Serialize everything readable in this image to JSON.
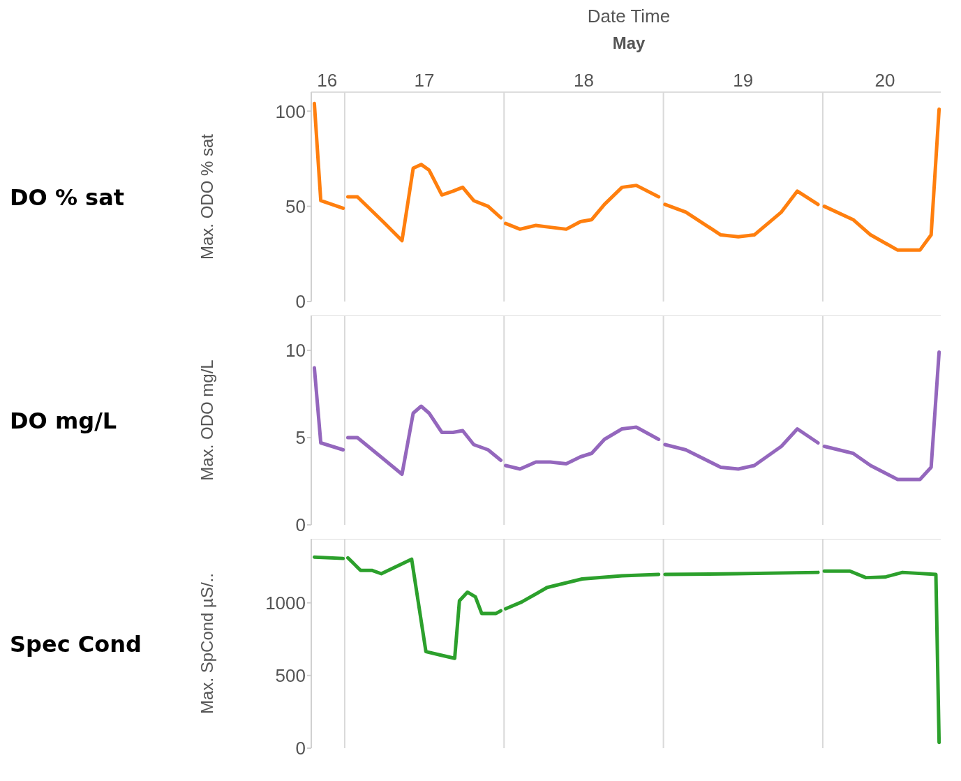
{
  "chart_data": [
    {
      "type": "line",
      "xlabel": "Date Time",
      "annotations": [
        "DO % sat",
        "May"
      ],
      "ylabel": "Max. ODO % sat",
      "xlim": [
        "--05-16T18:58",
        "--05-20T17:46"
      ],
      "xticks": [
        {
          "value": "--05-16T21:22",
          "label": "16"
        },
        {
          "value": "--05-17T12:00",
          "label": "17"
        },
        {
          "value": "--05-18T12:00",
          "label": "18"
        },
        {
          "value": "--05-19T12:00",
          "label": "19"
        },
        {
          "value": "--05-20T09:22",
          "label": "20"
        }
      ],
      "ylim": [
        0,
        110
      ],
      "yticks": [
        0,
        50,
        100
      ],
      "ref_lines": [
        {
          "axis": "x",
          "value": "--05-17T00:00",
          "color": "#d9d9d9"
        },
        {
          "axis": "x",
          "value": "--05-18T00:00",
          "color": "#d9d9d9"
        },
        {
          "axis": "x",
          "value": "--05-19T00:00",
          "color": "#d9d9d9"
        },
        {
          "axis": "x",
          "value": "--05-20T00:00",
          "color": "#d9d9d9"
        }
      ],
      "marker": "none",
      "x": [
        "--05-16T19:26",
        "--05-16T20:24",
        "--05-16T23:46",
        "--05-17T00:00",
        "--05-17T00:29",
        "--05-17T01:55",
        "--05-17T05:46",
        "--05-17T08:38",
        "--05-17T10:19",
        "--05-17T11:31",
        "--05-17T12:43",
        "--05-17T14:38",
        "--05-17T16:19",
        "--05-17T17:46",
        "--05-17T19:26",
        "--05-17T21:36",
        "--05-17T23:31",
        "--05-18T00:00",
        "--05-18T00:14",
        "--05-18T02:24",
        "--05-18T04:48",
        "--05-18T06:58",
        "--05-18T09:22",
        "--05-18T11:31",
        "--05-18T13:12",
        "--05-18T15:07",
        "--05-18T17:46",
        "--05-18T19:55",
        "--05-18T23:17",
        "--05-19T00:00",
        "--05-19T00:14",
        "--05-19T03:22",
        "--05-19T08:38",
        "--05-19T11:17",
        "--05-19T13:41",
        "--05-19T17:46",
        "--05-19T20:10",
        "--05-19T23:17",
        "--05-20T00:00",
        "--05-20T00:14",
        "--05-20T04:34",
        "--05-20T07:12",
        "--05-20T11:17",
        "--05-20T14:38",
        "--05-20T16:19",
        "--05-20T17:31"
      ],
      "series": [
        {
          "color": "#ff7f0e",
          "values": [
            104,
            53,
            49,
            null,
            55,
            55,
            42,
            32,
            70,
            72,
            69,
            56,
            58,
            60,
            53,
            50,
            44,
            null,
            41,
            38,
            40,
            39,
            38,
            42,
            43,
            51,
            60,
            61,
            55,
            null,
            51,
            47,
            35,
            34,
            35,
            47,
            58,
            51,
            null,
            50,
            43,
            35,
            27,
            27,
            35,
            101
          ]
        }
      ]
    },
    {
      "type": "line",
      "annotations": [
        "DO mg/L"
      ],
      "ylabel": "Max. ODO mg/L",
      "tick_labels": "y",
      "xlim": [
        "--05-16T18:58",
        "--05-20T17:46"
      ],
      "ylim": [
        0,
        12
      ],
      "yticks": [
        0,
        5,
        10
      ],
      "ref_lines": [
        {
          "axis": "x",
          "value": "--05-17T00:00",
          "color": "#d9d9d9"
        },
        {
          "axis": "x",
          "value": "--05-18T00:00",
          "color": "#d9d9d9"
        },
        {
          "axis": "x",
          "value": "--05-19T00:00",
          "color": "#d9d9d9"
        },
        {
          "axis": "x",
          "value": "--05-20T00:00",
          "color": "#d9d9d9"
        }
      ],
      "marker": "none",
      "x": [
        "--05-16T19:26",
        "--05-16T20:24",
        "--05-16T23:46",
        "--05-17T00:00",
        "--05-17T00:29",
        "--05-17T01:55",
        "--05-17T05:46",
        "--05-17T08:38",
        "--05-17T10:19",
        "--05-17T11:31",
        "--05-17T12:43",
        "--05-17T14:38",
        "--05-17T16:19",
        "--05-17T17:46",
        "--05-17T19:26",
        "--05-17T21:36",
        "--05-17T23:31",
        "--05-18T00:00",
        "--05-18T00:14",
        "--05-18T02:24",
        "--05-18T04:48",
        "--05-18T06:58",
        "--05-18T09:22",
        "--05-18T11:31",
        "--05-18T13:12",
        "--05-18T15:07",
        "--05-18T17:46",
        "--05-18T19:55",
        "--05-18T23:17",
        "--05-19T00:00",
        "--05-19T00:14",
        "--05-19T03:22",
        "--05-19T08:38",
        "--05-19T11:17",
        "--05-19T13:41",
        "--05-19T17:46",
        "--05-19T20:10",
        "--05-19T23:17",
        "--05-20T00:00",
        "--05-20T00:14",
        "--05-20T04:34",
        "--05-20T07:12",
        "--05-20T11:17",
        "--05-20T14:38",
        "--05-20T16:19",
        "--05-20T17:31"
      ],
      "series": [
        {
          "color": "#9467bd",
          "values": [
            9.0,
            4.7,
            4.3,
            null,
            5.0,
            5.0,
            3.8,
            2.9,
            6.4,
            6.8,
            6.4,
            5.3,
            5.3,
            5.4,
            4.6,
            4.3,
            3.7,
            null,
            3.4,
            3.2,
            3.6,
            3.6,
            3.5,
            3.9,
            4.1,
            4.9,
            5.5,
            5.6,
            4.9,
            null,
            4.6,
            4.3,
            3.3,
            3.2,
            3.4,
            4.5,
            5.5,
            4.7,
            null,
            4.5,
            4.1,
            3.4,
            2.6,
            2.6,
            3.3,
            9.9
          ]
        }
      ]
    },
    {
      "type": "line",
      "annotations": [
        "Spec Cond"
      ],
      "ylabel": "Max. SpCond µS/..",
      "tick_labels": "y",
      "xlim": [
        "--05-16T18:58",
        "--05-20T17:46"
      ],
      "ylim": [
        0,
        1440
      ],
      "yticks": [
        0,
        500,
        1000
      ],
      "ref_lines": [
        {
          "axis": "x",
          "value": "--05-17T00:00",
          "color": "#d9d9d9"
        },
        {
          "axis": "x",
          "value": "--05-18T00:00",
          "color": "#d9d9d9"
        },
        {
          "axis": "x",
          "value": "--05-19T00:00",
          "color": "#d9d9d9"
        },
        {
          "axis": "x",
          "value": "--05-20T00:00",
          "color": "#d9d9d9"
        }
      ],
      "marker": "none",
      "x": [
        "--05-16T19:26",
        "--05-16T23:46",
        "--05-17T00:00",
        "--05-17T00:29",
        "--05-17T02:24",
        "--05-17T04:05",
        "--05-17T05:31",
        "--05-17T10:05",
        "--05-17T12:14",
        "--05-17T14:24",
        "--05-17T16:34",
        "--05-17T17:17",
        "--05-17T18:29",
        "--05-17T19:41",
        "--05-17T20:38",
        "--05-17T22:48",
        "--05-17T23:31",
        "--05-18T00:00",
        "--05-18T00:14",
        "--05-18T02:38",
        "--05-18T06:29",
        "--05-18T11:46",
        "--05-18T17:46",
        "--05-18T23:17",
        "--05-19T00:00",
        "--05-19T00:14",
        "--05-19T11:02",
        "--05-19T23:17",
        "--05-20T00:00",
        "--05-20T00:14",
        "--05-20T04:05",
        "--05-20T06:29",
        "--05-20T09:22",
        "--05-20T12:00",
        "--05-20T17:02",
        "--05-20T17:31"
      ],
      "series": [
        {
          "color": "#2ca02c",
          "values": [
            1314,
            1305,
            null,
            1309,
            1223,
            1223,
            1200,
            1300,
            664,
            641,
            618,
            1014,
            1073,
            1041,
            927,
            927,
            945,
            null,
            959,
            1005,
            1105,
            1164,
            1186,
            1195,
            null,
            1195,
            1200,
            1209,
            null,
            1218,
            1218,
            1173,
            1177,
            1209,
            1195,
            40
          ]
        }
      ]
    }
  ]
}
